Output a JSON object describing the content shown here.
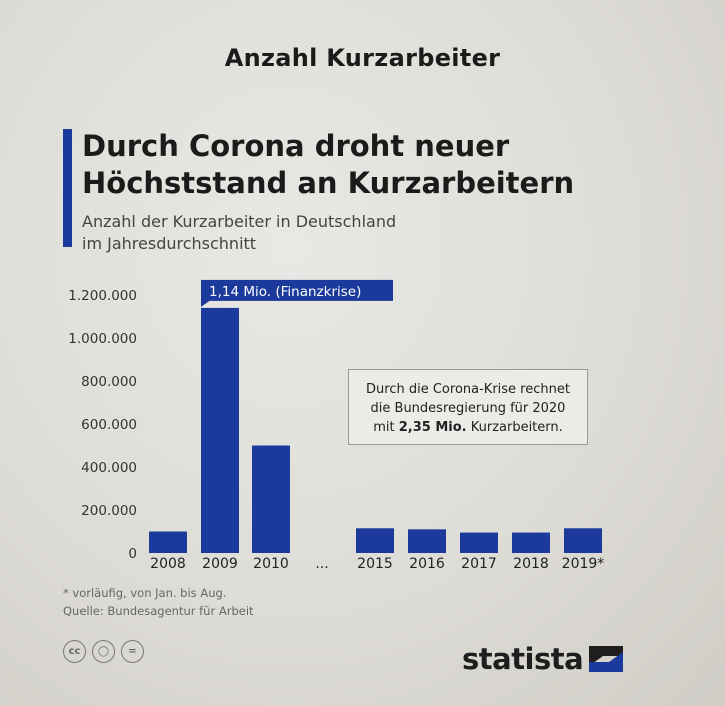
{
  "heading": "Anzahl Kurzarbeiter",
  "title_line1": "Durch Corona droht neuer",
  "title_line2": "Höchststand an Kurzarbeitern",
  "subtitle_line1": "Anzahl der Kurzarbeiter in Deutschland",
  "subtitle_line2": "im Jahresdurchschnitt",
  "callout": "1,14 Mio. (Finanzkrise)",
  "annotation": {
    "line1": "Durch die Corona-Krise rechnet",
    "line2": "die Bundesregierung für 2020",
    "line3_prefix": "mit ",
    "line3_bold": "2,35 Mio.",
    "line3_suffix": " Kurzarbeitern."
  },
  "footnote_line1": "* vorläufig, von Jan. bis Aug.",
  "footnote_line2": "Quelle: Bundesagentur für Arbeit",
  "logo_text": "statista",
  "colors": {
    "bar": "#1b3a9b",
    "accent": "#1b3a9b",
    "text": "#1b1b1b"
  },
  "chart_data": {
    "type": "bar",
    "title": "Durch Corona droht neuer Höchststand an Kurzarbeitern",
    "ylabel": "Anzahl der Kurzarbeiter",
    "ylim": [
      0,
      1200000
    ],
    "yticks": [
      0,
      200000,
      400000,
      600000,
      800000,
      1000000,
      1200000
    ],
    "ytick_labels": [
      "0",
      "200.000",
      "400.000",
      "600.000",
      "800.000",
      "1.000.000",
      "1.200.000"
    ],
    "categories": [
      "2008",
      "2009",
      "2010",
      "...",
      "2015",
      "2016",
      "2017",
      "2018",
      "2019*"
    ],
    "values": [
      100000,
      1140000,
      500000,
      null,
      115000,
      110000,
      95000,
      95000,
      115000
    ]
  }
}
